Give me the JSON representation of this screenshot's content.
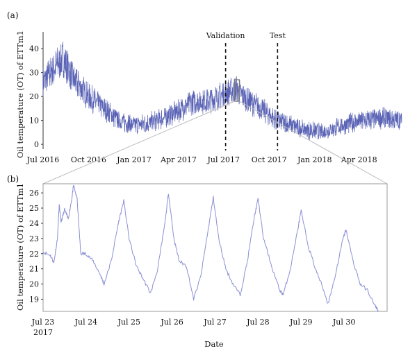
{
  "figure": {
    "xlabel": "Date"
  },
  "chart_data": [
    {
      "panel_label": "(a)",
      "type": "line",
      "ylabel": "Oil temperature (OT) of ETTm1",
      "x_range": [
        "2016-07-01",
        "2018-06-26"
      ],
      "ylim": [
        -2,
        47
      ],
      "y_ticks": [
        0,
        10,
        20,
        30,
        40
      ],
      "x_ticks": [
        {
          "date": "2016-07-01",
          "label": "Jul 2016"
        },
        {
          "date": "2016-10-01",
          "label": "Oct 2016"
        },
        {
          "date": "2017-01-01",
          "label": "Jan 2017"
        },
        {
          "date": "2017-04-01",
          "label": "Apr 2017"
        },
        {
          "date": "2017-07-01",
          "label": "Jul 2017"
        },
        {
          "date": "2017-10-01",
          "label": "Oct 2017"
        },
        {
          "date": "2018-01-01",
          "label": "Jan 2018"
        },
        {
          "date": "2018-04-01",
          "label": "Apr 2018"
        }
      ],
      "annotations": [
        {
          "date": "2017-07-05",
          "text": "Validation",
          "style": "dashed-vertical"
        },
        {
          "date": "2017-10-18",
          "text": "Test",
          "style": "dashed-vertical"
        }
      ],
      "highlight_window": {
        "start": "2017-07-23",
        "end": "2017-07-31",
        "ymin": 18,
        "ymax": 27
      },
      "series_color": "#5a63b5",
      "trend": [
        {
          "date": "2016-07-01",
          "value": 26
        },
        {
          "date": "2016-07-20",
          "value": 31
        },
        {
          "date": "2016-08-10",
          "value": 36
        },
        {
          "date": "2016-09-01",
          "value": 27
        },
        {
          "date": "2016-10-01",
          "value": 20
        },
        {
          "date": "2016-11-01",
          "value": 15
        },
        {
          "date": "2016-12-01",
          "value": 10
        },
        {
          "date": "2017-01-01",
          "value": 8
        },
        {
          "date": "2017-02-01",
          "value": 9
        },
        {
          "date": "2017-03-01",
          "value": 11
        },
        {
          "date": "2017-04-01",
          "value": 14
        },
        {
          "date": "2017-05-01",
          "value": 18
        },
        {
          "date": "2017-06-01",
          "value": 18
        },
        {
          "date": "2017-07-01",
          "value": 21
        },
        {
          "date": "2017-07-25",
          "value": 23
        },
        {
          "date": "2017-08-15",
          "value": 19
        },
        {
          "date": "2017-09-15",
          "value": 15
        },
        {
          "date": "2017-10-15",
          "value": 10
        },
        {
          "date": "2017-11-15",
          "value": 8
        },
        {
          "date": "2017-12-15",
          "value": 6
        },
        {
          "date": "2018-01-15",
          "value": 5
        },
        {
          "date": "2018-02-15",
          "value": 7
        },
        {
          "date": "2018-03-15",
          "value": 9
        },
        {
          "date": "2018-04-15",
          "value": 10
        },
        {
          "date": "2018-05-15",
          "value": 11
        },
        {
          "date": "2018-06-26",
          "value": 10
        }
      ]
    },
    {
      "panel_label": "(b)",
      "type": "line",
      "ylabel": "Oil temperature (OT) of ETTm1",
      "x_range": [
        "2017-07-23",
        "2017-07-31"
      ],
      "ylim": [
        18.2,
        26.6
      ],
      "y_ticks": [
        19,
        20,
        21,
        22,
        23,
        24,
        25,
        26
      ],
      "x_ticks": [
        {
          "date": "2017-07-23",
          "label": "Jul 23",
          "sublabel": "2017"
        },
        {
          "date": "2017-07-24",
          "label": "Jul 24"
        },
        {
          "date": "2017-07-25",
          "label": "Jul 25"
        },
        {
          "date": "2017-07-26",
          "label": "Jul 26"
        },
        {
          "date": "2017-07-27",
          "label": "Jul 27"
        },
        {
          "date": "2017-07-28",
          "label": "Jul 28"
        },
        {
          "date": "2017-07-29",
          "label": "Jul 29"
        },
        {
          "date": "2017-07-30",
          "label": "Jul 30"
        }
      ],
      "series_color": "#8a8fd4",
      "points": [
        {
          "t": "2017-07-23T00:00",
          "v": 22.1
        },
        {
          "t": "2017-07-23T04:00",
          "v": 21.9
        },
        {
          "t": "2017-07-23T06:00",
          "v": 21.4
        },
        {
          "t": "2017-07-23T08:00",
          "v": 23.0
        },
        {
          "t": "2017-07-23T09:00",
          "v": 25.2
        },
        {
          "t": "2017-07-23T10:00",
          "v": 24.1
        },
        {
          "t": "2017-07-23T12:00",
          "v": 24.9
        },
        {
          "t": "2017-07-23T14:00",
          "v": 24.3
        },
        {
          "t": "2017-07-23T16:00",
          "v": 25.6
        },
        {
          "t": "2017-07-23T17:00",
          "v": 26.5
        },
        {
          "t": "2017-07-23T19:00",
          "v": 25.6
        },
        {
          "t": "2017-07-23T21:00",
          "v": 22.0
        },
        {
          "t": "2017-07-24T00:00",
          "v": 22.0
        },
        {
          "t": "2017-07-24T04:00",
          "v": 21.5
        },
        {
          "t": "2017-07-24T08:00",
          "v": 20.6
        },
        {
          "t": "2017-07-24T10:00",
          "v": 20.0
        },
        {
          "t": "2017-07-24T14:00",
          "v": 21.5
        },
        {
          "t": "2017-07-24T18:00",
          "v": 24.0
        },
        {
          "t": "2017-07-24T21:00",
          "v": 25.5
        },
        {
          "t": "2017-07-25T00:00",
          "v": 23.0
        },
        {
          "t": "2017-07-25T04:00",
          "v": 21.2
        },
        {
          "t": "2017-07-25T08:00",
          "v": 20.3
        },
        {
          "t": "2017-07-25T12:00",
          "v": 19.4
        },
        {
          "t": "2017-07-25T16:00",
          "v": 21.0
        },
        {
          "t": "2017-07-25T20:00",
          "v": 24.0
        },
        {
          "t": "2017-07-25T22:00",
          "v": 26.0
        },
        {
          "t": "2017-07-26T01:00",
          "v": 23.0
        },
        {
          "t": "2017-07-26T04:00",
          "v": 21.5
        },
        {
          "t": "2017-07-26T08:00",
          "v": 21.2
        },
        {
          "t": "2017-07-26T12:00",
          "v": 19.0
        },
        {
          "t": "2017-07-26T16:00",
          "v": 20.5
        },
        {
          "t": "2017-07-26T20:00",
          "v": 23.5
        },
        {
          "t": "2017-07-26T23:00",
          "v": 25.7
        },
        {
          "t": "2017-07-27T02:00",
          "v": 23.0
        },
        {
          "t": "2017-07-27T06:00",
          "v": 21.0
        },
        {
          "t": "2017-07-27T10:00",
          "v": 20.0
        },
        {
          "t": "2017-07-27T14:00",
          "v": 19.3
        },
        {
          "t": "2017-07-27T18:00",
          "v": 21.5
        },
        {
          "t": "2017-07-27T22:00",
          "v": 24.5
        },
        {
          "t": "2017-07-28T00:00",
          "v": 25.6
        },
        {
          "t": "2017-07-28T03:00",
          "v": 23.0
        },
        {
          "t": "2017-07-28T08:00",
          "v": 21.0
        },
        {
          "t": "2017-07-28T12:00",
          "v": 19.6
        },
        {
          "t": "2017-07-28T14:00",
          "v": 19.3
        },
        {
          "t": "2017-07-28T18:00",
          "v": 21.0
        },
        {
          "t": "2017-07-28T22:00",
          "v": 23.5
        },
        {
          "t": "2017-07-29T00:00",
          "v": 24.8
        },
        {
          "t": "2017-07-29T04:00",
          "v": 22.5
        },
        {
          "t": "2017-07-29T08:00",
          "v": 21.0
        },
        {
          "t": "2017-07-29T12:00",
          "v": 19.8
        },
        {
          "t": "2017-07-29T15:00",
          "v": 18.7
        },
        {
          "t": "2017-07-29T19:00",
          "v": 20.5
        },
        {
          "t": "2017-07-29T23:00",
          "v": 22.8
        },
        {
          "t": "2017-07-30T01:00",
          "v": 23.6
        },
        {
          "t": "2017-07-30T05:00",
          "v": 21.5
        },
        {
          "t": "2017-07-30T09:00",
          "v": 20.0
        },
        {
          "t": "2017-07-30T13:00",
          "v": 19.6
        },
        {
          "t": "2017-07-30T17:00",
          "v": 18.6
        },
        {
          "t": "2017-07-30T19:00",
          "v": 18.3
        }
      ]
    }
  ]
}
